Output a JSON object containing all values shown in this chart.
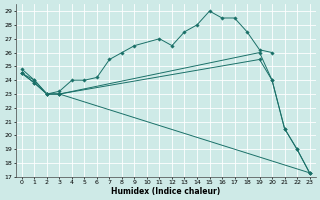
{
  "xlabel": "Humidex (Indice chaleur)",
  "bg_color": "#ceeae7",
  "grid_color": "#ffffff",
  "line_color": "#1a7068",
  "xlim": [
    -0.5,
    23.5
  ],
  "ylim": [
    17,
    29.5
  ],
  "yticks": [
    17,
    18,
    19,
    20,
    21,
    22,
    23,
    24,
    25,
    26,
    27,
    28,
    29
  ],
  "xticks": [
    0,
    1,
    2,
    3,
    4,
    5,
    6,
    7,
    8,
    9,
    10,
    11,
    12,
    13,
    14,
    15,
    16,
    17,
    18,
    19,
    20,
    21,
    22,
    23
  ],
  "lines": [
    {
      "x": [
        0,
        1,
        2,
        3,
        4,
        5,
        6,
        7,
        8,
        9,
        11,
        12,
        13,
        14,
        15,
        16,
        17,
        18,
        19,
        20
      ],
      "y": [
        24.8,
        24.0,
        23.0,
        23.2,
        24.0,
        24.0,
        24.2,
        25.5,
        26.0,
        26.5,
        27.0,
        26.5,
        27.5,
        28.0,
        29.0,
        28.5,
        28.5,
        27.5,
        26.2,
        26.0
      ]
    },
    {
      "x": [
        0,
        1,
        2,
        3,
        19,
        20,
        21,
        22,
        23
      ],
      "y": [
        24.5,
        24.0,
        23.0,
        23.0,
        26.0,
        24.0,
        20.5,
        19.0,
        17.3
      ]
    },
    {
      "x": [
        0,
        1,
        2,
        3,
        19,
        20,
        21,
        22,
        23
      ],
      "y": [
        24.5,
        23.8,
        23.0,
        23.0,
        25.5,
        24.0,
        20.5,
        19.0,
        17.3
      ]
    },
    {
      "x": [
        0,
        1,
        2,
        3,
        23
      ],
      "y": [
        24.5,
        23.8,
        23.0,
        23.0,
        17.3
      ]
    }
  ]
}
